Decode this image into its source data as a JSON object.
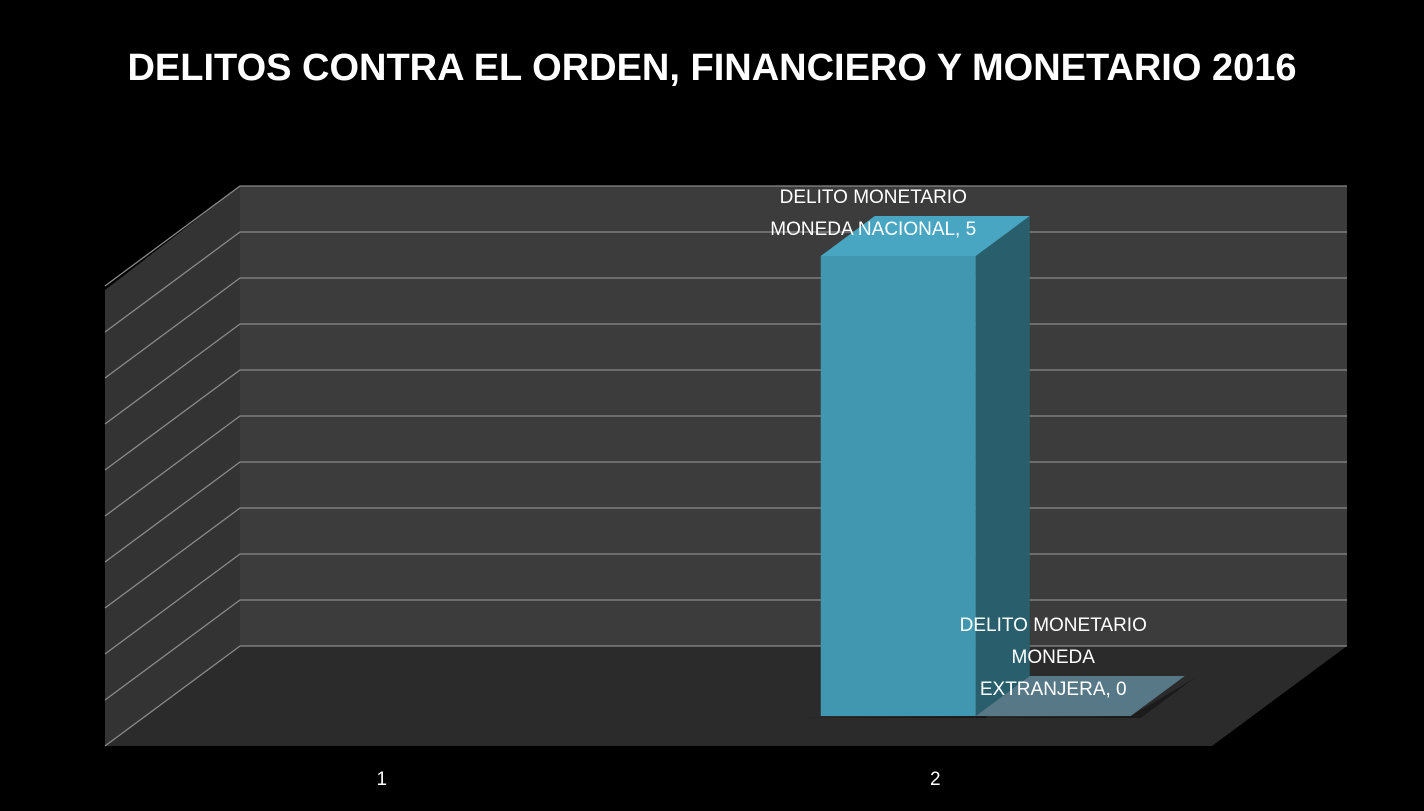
{
  "chart_data": {
    "type": "bar3d",
    "title": "DELITOS CONTRA EL ORDEN, FINANCIERO Y MONETARIO 2016",
    "categories": [
      "1",
      "2"
    ],
    "series": [
      {
        "name": "DELITO MONETARIO MONEDA NACIONAL",
        "color": "#4297b0",
        "values": [
          null,
          5
        ],
        "value_labels": [
          null,
          "DELITO MONETARIO MONEDA NACIONAL, 5"
        ]
      },
      {
        "name": "DELITO MONETARIO MONEDA EXTRANJERA",
        "color": "#4f6d7a",
        "values": [
          null,
          0
        ],
        "value_labels": [
          null,
          "DELITO MONETARIO MONEDA EXTRANJERA, 0"
        ]
      }
    ],
    "ylim": [
      0,
      5
    ],
    "yticks": [
      0,
      0.5,
      1,
      1.5,
      2,
      2.5,
      3,
      3.5,
      4,
      4.5,
      5
    ],
    "grid": true
  }
}
